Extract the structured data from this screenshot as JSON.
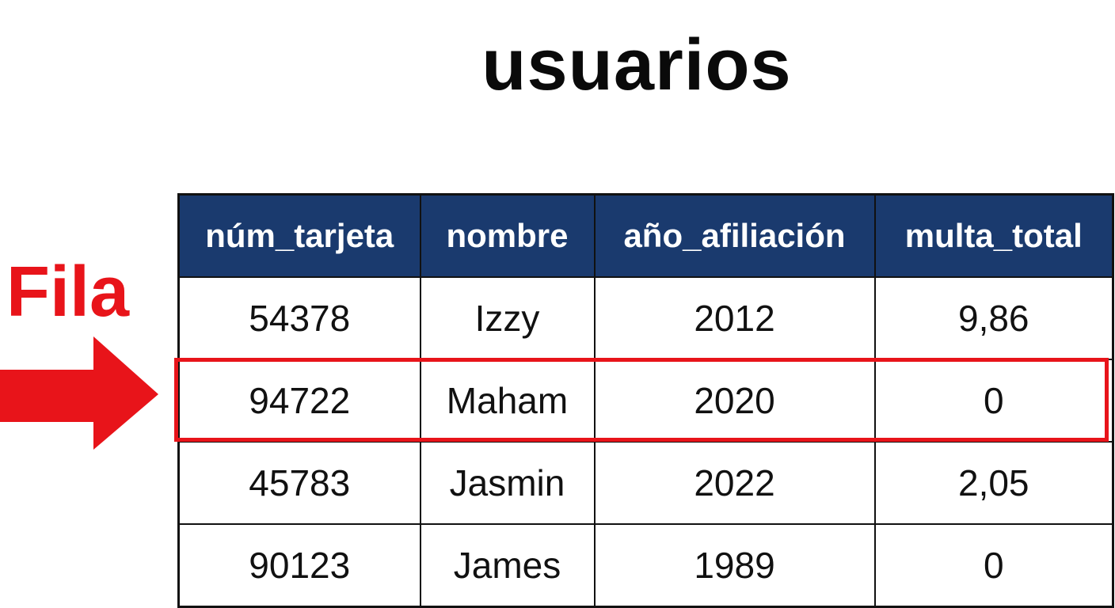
{
  "title": "usuarios",
  "label": "Fila",
  "colors": {
    "header_bg": "#1a3a6e",
    "accent": "#e8141a"
  },
  "table": {
    "headers": [
      "núm_tarjeta",
      "nombre",
      "año_afiliación",
      "multa_total"
    ],
    "rows": [
      [
        "54378",
        "Izzy",
        "2012",
        "9,86"
      ],
      [
        "94722",
        "Maham",
        "2020",
        "0"
      ],
      [
        "45783",
        "Jasmin",
        "2022",
        "2,05"
      ],
      [
        "90123",
        "James",
        "1989",
        "0"
      ]
    ],
    "highlighted_row": 2
  }
}
